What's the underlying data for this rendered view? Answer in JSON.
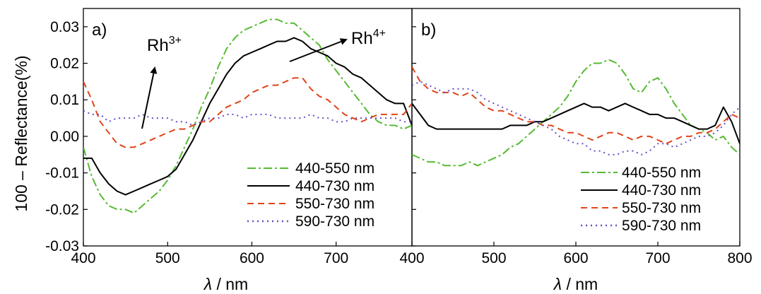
{
  "colors": {
    "green": "#55bb33",
    "black": "#000000",
    "red": "#e04418",
    "purple": "#6a4cc8"
  },
  "axes": {
    "ylabel": "100 – Reflectance(%)",
    "xlabel_symbol": "λ",
    "xlabel_unit": " / nm"
  },
  "chart_data": [
    {
      "type": "line",
      "panel": "a)",
      "xlim": [
        400,
        790
      ],
      "ylim": [
        -0.03,
        0.035
      ],
      "x_ticks": [
        "400",
        "500",
        "600",
        "700"
      ],
      "y_ticks": [
        "-0.03",
        "-0.02",
        "-0.01",
        "0.00",
        "0.01",
        "0.02",
        "0.03"
      ],
      "x_tick_values": [
        400,
        500,
        600,
        700
      ],
      "y_tick_values": [
        -0.03,
        -0.02,
        -0.01,
        0.0,
        0.01,
        0.02,
        0.03
      ],
      "grid": false,
      "legend_position": "bottom-right",
      "annotations": [
        {
          "base": "Rh",
          "sup": "3+"
        },
        {
          "base": "Rh",
          "sup": "4+"
        }
      ],
      "series": [
        {
          "name": "440-550 nm",
          "color": "green",
          "dash": "12 4 3 4",
          "x": [
            400,
            410,
            420,
            430,
            440,
            450,
            460,
            470,
            480,
            490,
            500,
            510,
            520,
            530,
            540,
            550,
            560,
            570,
            580,
            590,
            600,
            610,
            620,
            630,
            640,
            650,
            660,
            670,
            680,
            690,
            700,
            710,
            720,
            730,
            740,
            750,
            760,
            770,
            780,
            790
          ],
          "y": [
            -0.003,
            -0.011,
            -0.016,
            -0.019,
            -0.02,
            -0.02,
            -0.021,
            -0.019,
            -0.017,
            -0.015,
            -0.012,
            -0.008,
            -0.003,
            0.002,
            0.008,
            0.013,
            0.019,
            0.024,
            0.027,
            0.029,
            0.03,
            0.031,
            0.032,
            0.032,
            0.031,
            0.031,
            0.029,
            0.027,
            0.025,
            0.021,
            0.018,
            0.015,
            0.012,
            0.009,
            0.006,
            0.004,
            0.003,
            0.003,
            0.002,
            0.003
          ]
        },
        {
          "name": "440-730 nm",
          "color": "black",
          "dash": "",
          "x": [
            400,
            410,
            420,
            430,
            440,
            450,
            460,
            470,
            480,
            490,
            500,
            510,
            520,
            530,
            540,
            550,
            560,
            570,
            580,
            590,
            600,
            610,
            620,
            630,
            640,
            650,
            660,
            670,
            680,
            690,
            700,
            710,
            720,
            730,
            740,
            750,
            760,
            770,
            780,
            790
          ],
          "y": [
            -0.006,
            -0.006,
            -0.01,
            -0.013,
            -0.015,
            -0.016,
            -0.015,
            -0.014,
            -0.013,
            -0.012,
            -0.011,
            -0.009,
            -0.005,
            -0.001,
            0.004,
            0.009,
            0.013,
            0.017,
            0.02,
            0.022,
            0.023,
            0.024,
            0.025,
            0.026,
            0.026,
            0.027,
            0.026,
            0.024,
            0.023,
            0.022,
            0.02,
            0.019,
            0.017,
            0.016,
            0.014,
            0.012,
            0.01,
            0.009,
            0.009,
            0.003
          ]
        },
        {
          "name": "550-730 nm",
          "color": "red",
          "dash": "9 6",
          "x": [
            400,
            410,
            420,
            430,
            440,
            450,
            460,
            470,
            480,
            490,
            500,
            510,
            520,
            530,
            540,
            550,
            560,
            570,
            580,
            590,
            600,
            610,
            620,
            630,
            640,
            650,
            660,
            670,
            680,
            690,
            700,
            710,
            720,
            730,
            740,
            750,
            760,
            770,
            780,
            790
          ],
          "y": [
            0.015,
            0.01,
            0.004,
            0.001,
            -0.002,
            -0.003,
            -0.003,
            -0.002,
            -0.001,
            0.0,
            0.001,
            0.002,
            0.002,
            0.003,
            0.004,
            0.004,
            0.006,
            0.008,
            0.009,
            0.01,
            0.012,
            0.013,
            0.014,
            0.014,
            0.015,
            0.016,
            0.016,
            0.013,
            0.011,
            0.01,
            0.008,
            0.006,
            0.005,
            0.004,
            0.005,
            0.006,
            0.006,
            0.006,
            0.006,
            0.009
          ]
        },
        {
          "name": "590-730 nm",
          "color": "purple",
          "dash": "2 5",
          "x": [
            400,
            410,
            420,
            430,
            440,
            450,
            460,
            470,
            480,
            490,
            500,
            510,
            520,
            530,
            540,
            550,
            560,
            570,
            580,
            590,
            600,
            610,
            620,
            630,
            640,
            650,
            660,
            670,
            680,
            690,
            700,
            710,
            720,
            730,
            740,
            750,
            760,
            770,
            780,
            790
          ],
          "y": [
            0.007,
            0.006,
            0.006,
            0.004,
            0.005,
            0.005,
            0.005,
            0.006,
            0.005,
            0.005,
            0.005,
            0.004,
            0.004,
            0.003,
            0.004,
            0.005,
            0.005,
            0.006,
            0.006,
            0.005,
            0.006,
            0.006,
            0.006,
            0.005,
            0.005,
            0.005,
            0.005,
            0.006,
            0.005,
            0.005,
            0.004,
            0.004,
            0.005,
            0.005,
            0.005,
            0.005,
            0.005,
            0.005,
            0.004,
            0.004
          ]
        }
      ]
    },
    {
      "type": "line",
      "panel": "b)",
      "xlim": [
        400,
        800
      ],
      "ylim": [
        -0.03,
        0.035
      ],
      "x_ticks": [
        "400",
        "500",
        "600",
        "700",
        "800"
      ],
      "x_tick_values": [
        400,
        500,
        600,
        700,
        800
      ],
      "y_tick_values": [
        -0.03,
        -0.02,
        -0.01,
        0.0,
        0.01,
        0.02,
        0.03
      ],
      "grid": false,
      "legend_position": "bottom-right",
      "series": [
        {
          "name": "440-550 nm",
          "color": "green",
          "dash": "12 4 3 4",
          "x": [
            400,
            410,
            420,
            430,
            440,
            450,
            460,
            470,
            480,
            490,
            500,
            510,
            520,
            530,
            540,
            550,
            560,
            570,
            580,
            590,
            600,
            610,
            620,
            630,
            640,
            650,
            660,
            670,
            680,
            690,
            700,
            710,
            720,
            730,
            740,
            750,
            760,
            770,
            780,
            790,
            800
          ],
          "y": [
            -0.005,
            -0.006,
            -0.007,
            -0.007,
            -0.008,
            -0.008,
            -0.008,
            -0.007,
            -0.008,
            -0.007,
            -0.006,
            -0.005,
            -0.003,
            -0.002,
            0.0,
            0.002,
            0.004,
            0.006,
            0.008,
            0.011,
            0.015,
            0.018,
            0.02,
            0.02,
            0.021,
            0.02,
            0.017,
            0.013,
            0.012,
            0.015,
            0.016,
            0.013,
            0.009,
            0.006,
            0.003,
            0.002,
            0.001,
            -0.001,
            0.0,
            -0.003,
            -0.005
          ]
        },
        {
          "name": "440-730 nm",
          "color": "black",
          "dash": "",
          "x": [
            400,
            410,
            420,
            430,
            440,
            450,
            460,
            470,
            480,
            490,
            500,
            510,
            520,
            530,
            540,
            550,
            560,
            570,
            580,
            590,
            600,
            610,
            620,
            630,
            640,
            650,
            660,
            670,
            680,
            690,
            700,
            710,
            720,
            730,
            740,
            750,
            760,
            770,
            780,
            790,
            800
          ],
          "y": [
            0.009,
            0.006,
            0.003,
            0.002,
            0.002,
            0.002,
            0.002,
            0.002,
            0.002,
            0.002,
            0.002,
            0.002,
            0.003,
            0.003,
            0.003,
            0.004,
            0.004,
            0.005,
            0.006,
            0.007,
            0.008,
            0.009,
            0.008,
            0.008,
            0.007,
            0.008,
            0.009,
            0.008,
            0.007,
            0.006,
            0.006,
            0.005,
            0.005,
            0.004,
            0.003,
            0.002,
            0.002,
            0.003,
            0.008,
            0.004,
            -0.002
          ]
        },
        {
          "name": "550-730 nm",
          "color": "red",
          "dash": "9 6",
          "x": [
            400,
            410,
            420,
            430,
            440,
            450,
            460,
            470,
            480,
            490,
            500,
            510,
            520,
            530,
            540,
            550,
            560,
            570,
            580,
            590,
            600,
            610,
            620,
            630,
            640,
            650,
            660,
            670,
            680,
            690,
            700,
            710,
            720,
            730,
            740,
            750,
            760,
            770,
            780,
            790,
            800
          ],
          "y": [
            0.019,
            0.015,
            0.013,
            0.012,
            0.012,
            0.012,
            0.011,
            0.012,
            0.01,
            0.008,
            0.007,
            0.007,
            0.006,
            0.005,
            0.004,
            0.004,
            0.003,
            0.003,
            0.002,
            0.001,
            0.001,
            0.0,
            -0.001,
            0.0,
            0.001,
            0.001,
            0.0,
            -0.001,
            0.0,
            0.0,
            -0.001,
            -0.002,
            -0.001,
            0.0,
            0.0,
            0.001,
            0.001,
            0.002,
            0.004,
            0.006,
            0.005
          ]
        },
        {
          "name": "590-730 nm",
          "color": "purple",
          "dash": "2 5",
          "x": [
            400,
            410,
            420,
            430,
            440,
            450,
            460,
            470,
            480,
            490,
            500,
            510,
            520,
            530,
            540,
            550,
            560,
            570,
            580,
            590,
            600,
            610,
            620,
            630,
            640,
            650,
            660,
            670,
            680,
            690,
            700,
            710,
            720,
            730,
            740,
            750,
            760,
            770,
            780,
            790,
            800
          ],
          "y": [
            0.014,
            0.015,
            0.014,
            0.013,
            0.012,
            0.013,
            0.013,
            0.013,
            0.012,
            0.01,
            0.009,
            0.008,
            0.007,
            0.006,
            0.005,
            0.004,
            0.003,
            0.002,
            0.0,
            -0.001,
            -0.002,
            -0.002,
            -0.004,
            -0.004,
            -0.005,
            -0.005,
            -0.004,
            -0.004,
            -0.005,
            -0.004,
            -0.002,
            -0.002,
            -0.003,
            -0.002,
            -0.001,
            0.0,
            0.0,
            0.001,
            0.003,
            0.006,
            0.008
          ]
        }
      ]
    }
  ]
}
